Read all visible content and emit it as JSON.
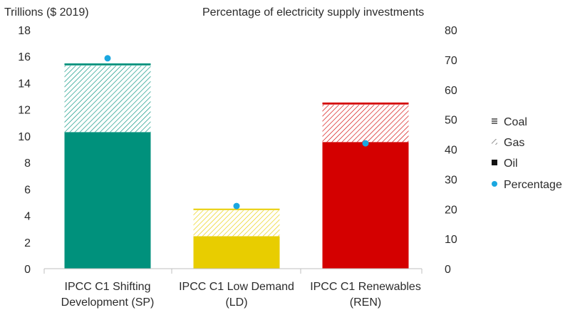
{
  "chart_data": {
    "type": "bar",
    "stacked": true,
    "title": "",
    "ylabel_left": "Trillions ($ 2019)",
    "ylabel_right": "Percentage of electricity supply investments",
    "ylim_left": [
      0,
      18
    ],
    "yticks_left": [
      0,
      2,
      4,
      6,
      8,
      10,
      12,
      14,
      16,
      18
    ],
    "ylim_right": [
      0,
      80
    ],
    "yticks_right": [
      0,
      10,
      20,
      30,
      40,
      50,
      60,
      70,
      80
    ],
    "grid": false,
    "legend_position": "right",
    "categories": [
      [
        "IPCC C1 Shifting",
        "Development (SP)"
      ],
      [
        "IPCC C1 Low Demand",
        "(LD)"
      ],
      [
        "IPCC C1 Renewables",
        "(REN)"
      ]
    ],
    "category_colors": [
      "#00917c",
      "#e8cd00",
      "#d40000"
    ],
    "series": [
      {
        "name": "Oil",
        "pattern": "solid",
        "axis": "left",
        "values": [
          10.3,
          2.45,
          9.55
        ]
      },
      {
        "name": "Gas",
        "pattern": "diagonal-hatch",
        "axis": "left",
        "values": [
          5.0,
          1.95,
          2.8
        ]
      },
      {
        "name": "Coal",
        "pattern": "horizontal-lines",
        "axis": "left",
        "values": [
          0.15,
          0.1,
          0.15
        ]
      },
      {
        "name": "Percentage",
        "type": "scatter",
        "axis": "right",
        "color": "#1aa7e0",
        "values": [
          70.5,
          21.0,
          42.0
        ]
      }
    ],
    "legend": [
      {
        "name": "Coal",
        "symbol": "horizontal-lines"
      },
      {
        "name": "Gas",
        "symbol": "diagonal-hatch"
      },
      {
        "name": "Oil",
        "symbol": "solid"
      },
      {
        "name": "Percentage",
        "symbol": "dot"
      }
    ]
  }
}
